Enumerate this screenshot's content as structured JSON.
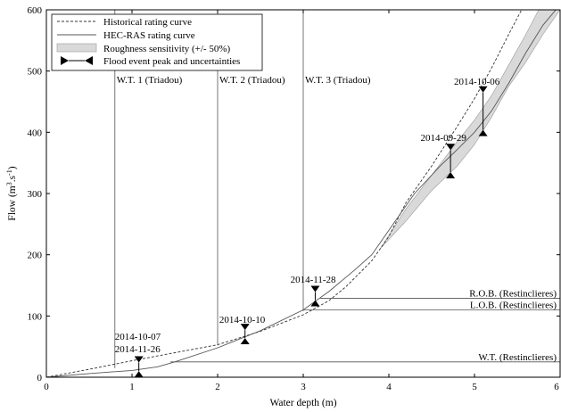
{
  "chart_data": {
    "type": "line",
    "xlabel": "Water depth (m)",
    "ylabel_main": "Flow (m",
    "ylabel_sup": "3",
    "ylabel_mid": ".s",
    "ylabel_sup2": "-1",
    "ylabel_end": ")",
    "xlim": [
      0,
      6
    ],
    "ylim": [
      0,
      600
    ],
    "xticks": [
      "0",
      "1",
      "2",
      "3",
      "4",
      "5",
      "6"
    ],
    "yticks": [
      "0",
      "100",
      "200",
      "300",
      "400",
      "500",
      "600"
    ],
    "grid": false,
    "legend_position": "top-left",
    "legend": {
      "historical": "Historical rating curve",
      "hecras": "HEC-RAS rating curve",
      "roughness": "Roughness sensitivity (+/- 50%)",
      "flood": "Flood event peak and uncertainties"
    },
    "series": [
      {
        "name": "Historical rating curve",
        "style": "dashed",
        "points": [
          [
            0,
            0
          ],
          [
            0.5,
            13
          ],
          [
            1.0,
            27
          ],
          [
            1.5,
            40
          ],
          [
            2.0,
            53
          ],
          [
            2.5,
            75
          ],
          [
            3.0,
            102
          ],
          [
            3.3,
            125
          ],
          [
            3.5,
            148
          ],
          [
            3.8,
            190
          ],
          [
            4.0,
            230
          ],
          [
            4.2,
            285
          ],
          [
            4.5,
            345
          ],
          [
            4.8,
            410
          ],
          [
            5.0,
            455
          ],
          [
            5.2,
            505
          ],
          [
            5.4,
            560
          ],
          [
            5.55,
            600
          ]
        ]
      },
      {
        "name": "HEC-RAS rating curve",
        "style": "solid",
        "points": [
          [
            0,
            0
          ],
          [
            0.5,
            6
          ],
          [
            1.0,
            11
          ],
          [
            1.3,
            17
          ],
          [
            1.5,
            25
          ],
          [
            2.0,
            48
          ],
          [
            2.5,
            76
          ],
          [
            3.0,
            110
          ],
          [
            3.3,
            140
          ],
          [
            3.6,
            175
          ],
          [
            3.8,
            200
          ],
          [
            4.0,
            240
          ],
          [
            4.3,
            300
          ],
          [
            4.6,
            345
          ],
          [
            4.8,
            372
          ],
          [
            5.0,
            400
          ],
          [
            5.2,
            435
          ],
          [
            5.4,
            480
          ],
          [
            5.6,
            530
          ],
          [
            5.8,
            575
          ],
          [
            5.95,
            600
          ]
        ]
      }
    ],
    "roughness_band": {
      "name": "Roughness sensitivity (+/- 50%)",
      "upper": [
        [
          3.9,
          210
        ],
        [
          4.2,
          275
        ],
        [
          4.5,
          330
        ],
        [
          4.8,
          385
        ],
        [
          5.0,
          420
        ],
        [
          5.2,
          460
        ],
        [
          5.4,
          510
        ],
        [
          5.6,
          560
        ],
        [
          5.75,
          600
        ]
      ],
      "lower": [
        [
          6.0,
          600
        ],
        [
          5.8,
          560
        ],
        [
          5.6,
          515
        ],
        [
          5.4,
          475
        ],
        [
          5.2,
          425
        ],
        [
          5.0,
          380
        ],
        [
          4.8,
          345
        ],
        [
          4.5,
          305
        ],
        [
          4.2,
          255
        ],
        [
          3.9,
          210
        ]
      ]
    },
    "flood_events": [
      {
        "label": "2014-10-07",
        "label2": "2014-11-26",
        "x": 1.08,
        "y_high": 24,
        "y_low": 10
      },
      {
        "label": "2014-10-10",
        "x": 2.32,
        "y_high": 77,
        "y_low": 64
      },
      {
        "label": "2014-11-28",
        "x": 3.14,
        "y_high": 139,
        "y_low": 126
      },
      {
        "label": "2014-09-29",
        "x": 4.72,
        "y_high": 371,
        "y_low": 335
      },
      {
        "label": "2014-10-06",
        "x": 5.1,
        "y_high": 465,
        "y_low": 404
      }
    ],
    "triadou_lines": [
      {
        "label": "W.T. 1 (Triadou)",
        "x": 0.8,
        "y_bottom": 15
      },
      {
        "label": "W.T. 2 (Triadou)",
        "x": 2.0,
        "y_bottom": 52
      },
      {
        "label": "W.T. 3 (Triadou)",
        "x": 3.0,
        "y_bottom": 108
      }
    ],
    "restinclieres_lines": [
      {
        "label": "R.O.B. (Restinclieres)",
        "y": 129,
        "x_start": 3.2
      },
      {
        "label": "L.O.B. (Restinclieres)",
        "y": 110,
        "x_start": 3.0
      },
      {
        "label": "W.T. (Restinclieres)",
        "y": 25,
        "x_start": 1.45
      }
    ]
  }
}
